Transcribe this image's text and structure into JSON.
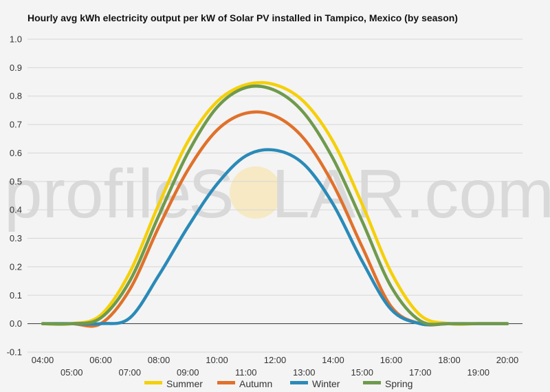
{
  "chart_data": {
    "type": "line",
    "title": "Hourly avg kWh electricity output per kW of Solar PV installed in Tampico, Mexico (by season)",
    "xlabel": "",
    "ylabel": "",
    "x": [
      "04:00",
      "05:00",
      "06:00",
      "07:00",
      "08:00",
      "09:00",
      "10:00",
      "11:00",
      "12:00",
      "13:00",
      "14:00",
      "15:00",
      "16:00",
      "17:00",
      "18:00",
      "19:00",
      "20:00"
    ],
    "ylim": [
      -0.1,
      1.0
    ],
    "yticks": [
      "1.0",
      "0.9",
      "0.8",
      "0.7",
      "0.6",
      "0.5",
      "0.4",
      "0.3",
      "0.2",
      "0.1",
      "0.0",
      "-0.1"
    ],
    "grid": true,
    "legend_position": "bottom",
    "series": [
      {
        "name": "Summer",
        "color": "#f5d00a",
        "values": [
          0,
          0,
          0.03,
          0.18,
          0.42,
          0.64,
          0.78,
          0.84,
          0.84,
          0.78,
          0.64,
          0.42,
          0.18,
          0.03,
          0,
          0,
          0
        ]
      },
      {
        "name": "Autumn",
        "color": "#e0712b",
        "values": [
          0,
          0,
          0,
          0.12,
          0.34,
          0.54,
          0.68,
          0.74,
          0.73,
          0.65,
          0.49,
          0.27,
          0.06,
          0,
          0,
          0,
          0
        ]
      },
      {
        "name": "Winter",
        "color": "#2a8ab8",
        "values": [
          0,
          0,
          0,
          0.02,
          0.17,
          0.34,
          0.49,
          0.59,
          0.61,
          0.56,
          0.42,
          0.22,
          0.05,
          0,
          0,
          0,
          0
        ]
      },
      {
        "name": "Spring",
        "color": "#6f9a4c",
        "values": [
          0,
          0,
          0.02,
          0.15,
          0.38,
          0.6,
          0.76,
          0.83,
          0.82,
          0.74,
          0.58,
          0.36,
          0.13,
          0.01,
          0,
          0,
          0
        ]
      }
    ]
  },
  "watermark": {
    "left": "profile",
    "mid": "S",
    "right": "LAR.com"
  }
}
